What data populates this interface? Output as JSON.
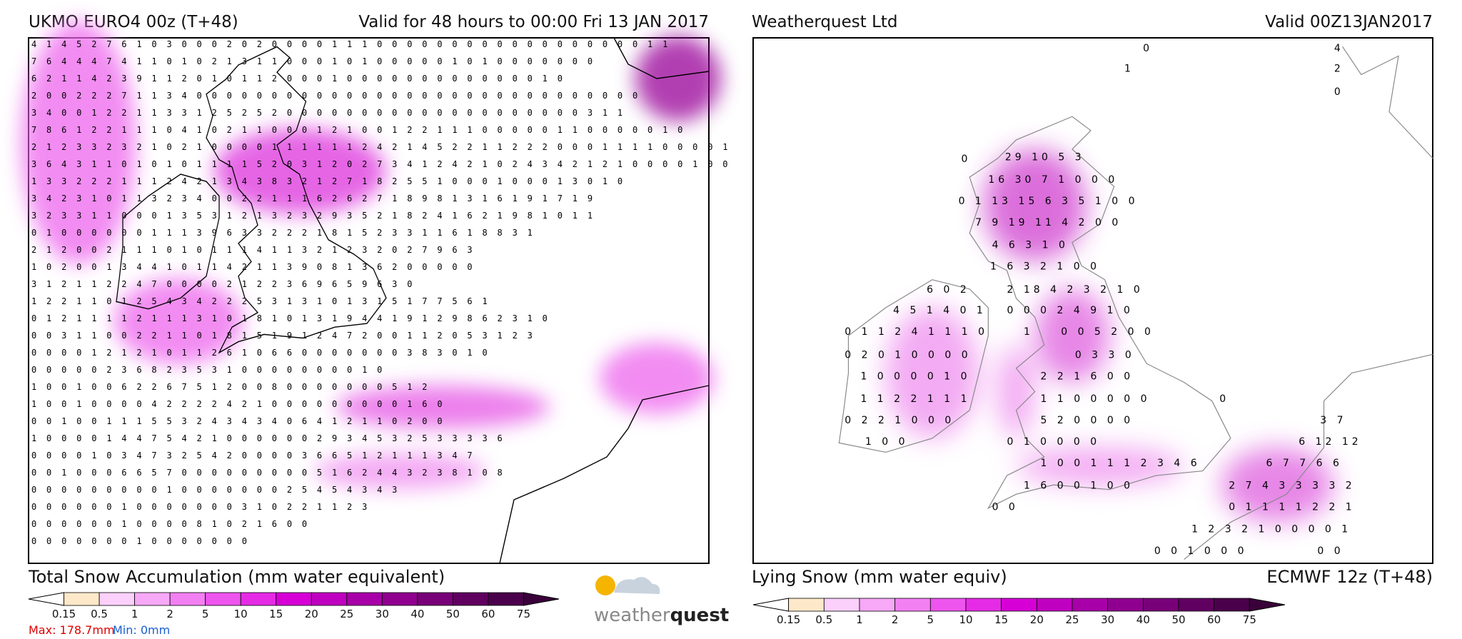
{
  "left_panel": {
    "title": "UKMO EURO4 00z (T+48)",
    "valid": "Valid for 48 hours to 00:00 Fri 13 JAN 2017",
    "caption": "Total Snow Accumulation (mm water equivalent)",
    "grid_rows": [
      "4 1 4 5 2 7 6 1 0 3 0 0 0 2 0 2 0 0 0 0 1 1 1 0 0 0 0 0 0 0 0 0    0 0 0    0 0 0 0 0    0 1 1",
      "7 6 4 4 4 7 4 1 1 0 1 0 2 1 3 1 1 0 0 0 1 0 1 0 0 0 0 0 1 0 1 0 0    0 0 0 0 0",
      "6 2 1 1 4 2 3 9 1 1 2 0 1 0 1 1 2 0 0 0 1 0 0 0 0 0 0 0 0 0    0 0 0 0 1 0",
      "2 0 0 2 2 2 7 1 1 3 4 0 0 0 0 0 0 0 0 0 0 0 0 0 0 0 0 0 0 0    0 0 0 0 0 0 0 0 0 0 0",
      "3 4 0 0 1 2 2 1 1 3 3 1 2 5 2 5 2 0    0 0 0 0 0 0 0 0 0 0 0 0 0 0 0 0 0 0 0 3 1 1",
      "7 8 6 1 2 2 1 1 1 0 4 1 0 2 1 1 0 0 0 1 2 1 0 0 1 2 2 1 1 1 0 0 0 0 0 1 1 0 0 0 0 0 1 0",
      "2 1 2 3 3 2 3 2 1 0 2 1 0 0 0 0 1 1 1 1 1 1 2 4 2 1 4 5 2 2 1 1 2 2 2 0    0 0 1 1 1 1 0 0 0 0 1",
      "3 6 4 3 1 1 0 1 0 1 0 1 1 1 1 5 2 0 3 1 2 0 2 7 3 4 1 2 4 2 1 0 2 4 3 4 2 1 2 1 0    0 0 0 1 0 0",
      "1 3 3 2 2 2 1 1 1 2 4 2 1 3 4 3 8 3 2 1 2 7 1 8 2 5 5 1 0 0 0 1 0 0 0 1 3 0 1 0",
      "3 4 2 3 1 0 1 1 3 2 3 4 0 0 2 2 1 1 1 6 2 6 2 7 1 8 9 8 1 3 1 6 1 9 1 7 1 9",
      "3 2 3 3 1 1 0 0 0 1 3 5 3 1 2 1 3 2 3 2 9 3 5 2 1 8 2 4 1 6 2 1 9 8 1 0 1 1",
      "0 1 0 0 0 0 0 0 1 1 1 3 9 6 3 3 2 2 2 1 8 1 5 2 3 3 1 1 6 1 8 8 3 1",
      "2 1 2 0 0 2 1 1 1 0 1 0 1 1 1 4 1 1 3 2 1 2 3 2 0 2 7 9 6 3",
      "1 0 2 0 0 1 3 4 4 1 0    1 1 4 2 1 1 3 9 0 8 1 3 6 2 0 0 0 0 0",
      "3 1 2 1 1 2 2 4 7 0 0 0 0 2 1 2 2 3 6 9 6 5 9 6 3 0",
      "1 2 2 1 1 0 1 2 5 4 3 4 2 2 2 5 3 1 3 1 0 1 3 1 5 1 7 7 5 6 1",
      "0 1 2 1 1 1 1 2 1 1 1 3 1 0 1 8 1 0 1 3 1 9 4 4 1 9 1 2 9 8 6 2 3 1 0",
      "0 0 3 1 1 0 0 2 2 1 1 0 1 8 1 5 1 9 1 2 4 7 2 0 0 1 1 2 0 5 3 1 2 3",
      "0 0 0 0 1 2 1 2 1 0 1 1 2 6 1 0 6 6 0 0 0 0 0 0 0 3 8 3 0 1 0",
      "0 0 0 0 0 2 3 6 8 2 3 5 3 1 0 0 0 0 0 0 0 0 1 0",
      "1 0 0 1 0 0 6 2 2 6 7 5 1 2 0 0 8 0 0 0 0 0 0 0 5 1 2",
      "1 0 0 1 0 0 0 0 4 2 2 2 2 4 2 1 0 0 0 0 0 0 0 0 0 1 6 0",
      "0 0 1 0 0 1 1 1 5 5 3 2 4 3 4 3 4 0    6 4 1 2 1 1 0 2 0 0",
      "1 0 0 0 0 1 4 4 7 5 4 2 1 0 0 0 0 0 0 2 9 3 4 5 3 2 5 3 3 3 3 6",
      "0 0 0 0 1 0 3 4 7 3 2 5 4 2 0 0 0 0 3 6 6 5 1 2 1 1 1 3 4 7",
      "0 0 1 0 0 0 6 6 5 7 0    0 0 0 0 0 0 0 0 5 1 6 2 4 4 3 2 3 8 1 0 8",
      "0 0 0 0 0 0 0 0 0 1 0 0 0 0 0 0 0 2 5 4 5 4 3 4 3",
      "0 0    0 0 0 0 1 0 0 0 0    0 0 0 3 1 0 2 2 1 1 2 3",
      "0 0    0    0 0 0 1    0    0 0 0 8 1 0 2 1 6 0 0",
      "0    0 0 0    0    0 0 1 0    0    0 0 0 0 0"
    ],
    "colorbar_labels": [
      "0.15",
      "0.5",
      "1",
      "2",
      "5",
      "10",
      "15",
      "20",
      "25",
      "30",
      "40",
      "50",
      "60",
      "75"
    ],
    "max": "Max: 178.7mm",
    "min": "Min: 0mm",
    "logo": [
      "weather",
      "quest"
    ]
  },
  "right_panel": {
    "title": "Weatherquest Ltd",
    "valid": "Valid 00Z13JAN2017",
    "caption": "Lying Snow (mm water equiv)",
    "model": "ECMWF 12z (T+48)",
    "map_labels": [
      "0",
      "1",
      "4",
      "2",
      "0",
      "0",
      "29 10 5 3",
      "16 30 7 1 0 0 0",
      "0 1 13 15 6 3 5 1 0 0",
      "7 9 19 11 4 2 0 0",
      "4 6 3 1 0",
      "1 6 3 2 1 0 0",
      "6 0 2",
      "2 18 4 2 3 2 1 0",
      "4 5 1 4 0 1",
      "0 0 0 2 4 9 1 0",
      "0 1 1 2 4 1 1 1 0",
      "1",
      "0 0 5 2 0 0",
      "0 2 0 1 0 0 0 0",
      "0 3 3 0",
      "1 0 0 0 0 1 0",
      "2 2 1 6 0 0",
      "1 1 2 2 1 1 1",
      "1 1 0 0 0 0 0",
      "0",
      "0 2 2 1 0 0 0",
      "5 2 0 0 0 0",
      "3 7",
      "1 0 0",
      "0 1 0 0 0 0",
      "6 12 12",
      "1 0 0 1 1 1 2 3 4 6",
      "6 7 7 6 6",
      "1 6 0 0 1 0 0",
      "2 7 4 3 3 3 3 2",
      "0 0",
      "0 1 1 1 1 2 2 1",
      "1 2 3 2 1 0 0 0 0 1",
      "0 0 1 0 0 0",
      "0 0"
    ],
    "colorbar_labels": [
      "0.15",
      "0.5",
      "1",
      "2",
      "5",
      "10",
      "15",
      "20",
      "25",
      "30",
      "40",
      "50",
      "60",
      "75"
    ]
  }
}
